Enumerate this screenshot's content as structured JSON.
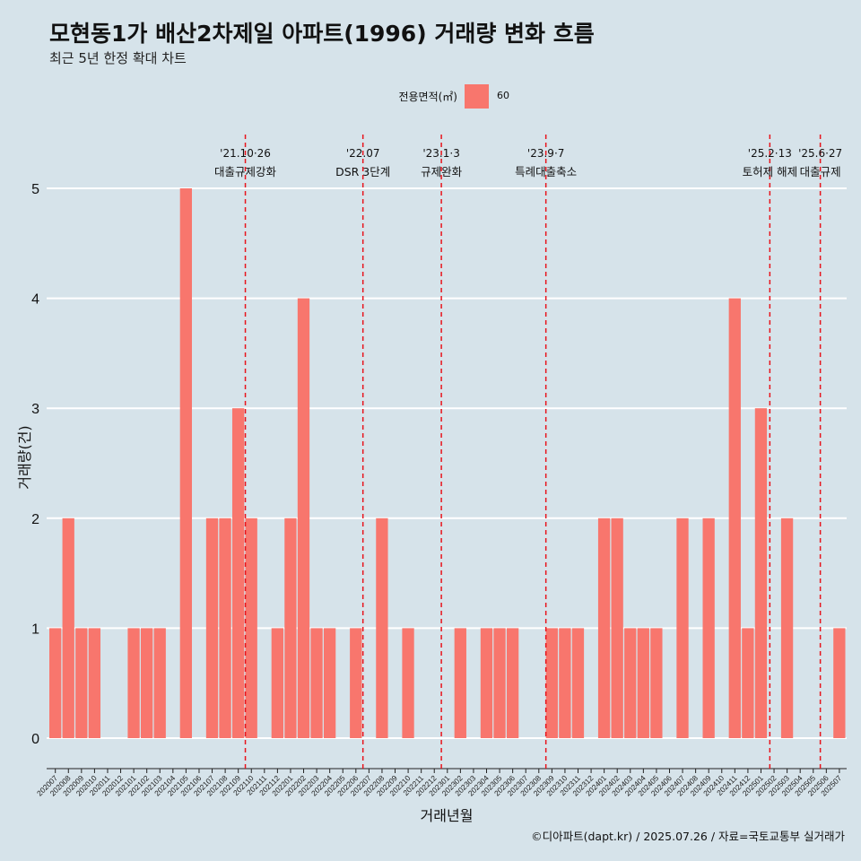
{
  "title": "모현동1가 배산2차제일 아파트(1996) 거래량 변화 흐름",
  "subtitle": "최근 5년 한정 확대 차트",
  "legend": {
    "title": "전용면적(㎡)",
    "label": "60"
  },
  "footer": "©디아파트(dapt.kr) / 2025.07.26 / 자료=국토교통부 실거래가",
  "colors": {
    "bar": "#f8766d",
    "vline": "#e8141c",
    "background": "#d6e3ea",
    "grid": "#ffffff"
  },
  "chart_data": {
    "type": "bar",
    "xlabel": "거래년월",
    "ylabel": "거래량(건)",
    "ylim": [
      0,
      5
    ],
    "yticks": [
      0,
      1,
      2,
      3,
      4,
      5
    ],
    "grid": true,
    "categories": [
      "202007",
      "202008",
      "202009",
      "202010",
      "202011",
      "202012",
      "202101",
      "202102",
      "202103",
      "202104",
      "202105",
      "202106",
      "202107",
      "202108",
      "202109",
      "202110",
      "202111",
      "202112",
      "202201",
      "202202",
      "202203",
      "202204",
      "202205",
      "202206",
      "202207",
      "202208",
      "202209",
      "202210",
      "202211",
      "202212",
      "202301",
      "202302",
      "202303",
      "202304",
      "202305",
      "202306",
      "202307",
      "202308",
      "202309",
      "202310",
      "202311",
      "202312",
      "202401",
      "202402",
      "202403",
      "202404",
      "202405",
      "202406",
      "202407",
      "202408",
      "202409",
      "202410",
      "202411",
      "202412",
      "202501",
      "202502",
      "202503",
      "202504",
      "202505",
      "202506",
      "202507"
    ],
    "series": [
      {
        "name": "60",
        "values": [
          1,
          2,
          1,
          1,
          0,
          0,
          1,
          1,
          1,
          0,
          5,
          0,
          2,
          2,
          3,
          2,
          0,
          1,
          2,
          4,
          1,
          1,
          0,
          1,
          0,
          2,
          0,
          1,
          0,
          0,
          0,
          1,
          0,
          1,
          1,
          1,
          0,
          0,
          1,
          1,
          1,
          0,
          2,
          2,
          1,
          1,
          1,
          0,
          2,
          0,
          2,
          0,
          4,
          1,
          3,
          0,
          2,
          0,
          0,
          0,
          1
        ]
      }
    ],
    "annotations": [
      {
        "x": "202110",
        "date": "'21.10·26",
        "text": "대출규제강화"
      },
      {
        "x": "202207",
        "date": "'22.07",
        "text": "DSR 3단계"
      },
      {
        "x": "202301",
        "date": "'23.1·3",
        "text": "규제완화"
      },
      {
        "x": "202309",
        "date": "'23.9·7",
        "text": "특례대출축소"
      },
      {
        "x": "202502",
        "date": "'25.2·13",
        "text": "토허제 해제"
      },
      {
        "x": "202506",
        "date": "'25.6·27",
        "text": "대출규제"
      }
    ]
  }
}
